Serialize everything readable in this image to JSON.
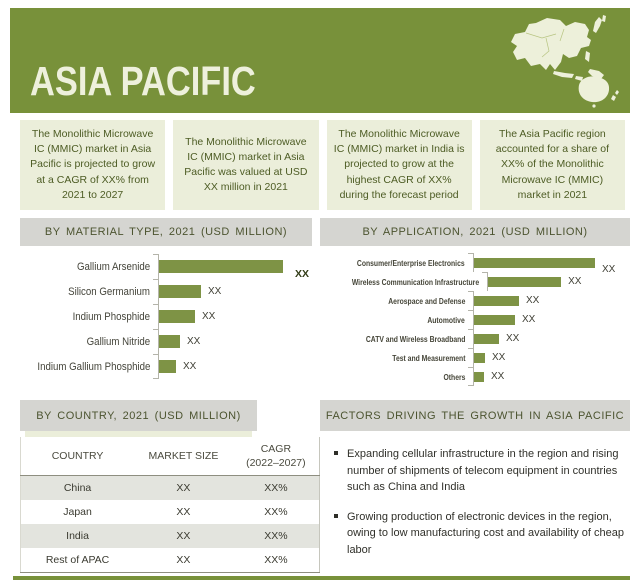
{
  "header": {
    "title": "ASIA PACIFIC"
  },
  "info_boxes": [
    {
      "text": "The Monolithic Microwave IC (MMIC) market in Asia Pacific is projected to grow at a CAGR of XX% from 2021 to 2027"
    },
    {
      "text": "The Monolithic Microwave IC (MMIC) market in Asia Pacific was valued at USD XX million in 2021"
    },
    {
      "text": "The Monolithic Microwave IC (MMIC) market in India is projected to grow at the highest CAGR of XX% during the forecast period"
    },
    {
      "text": "The Asia Pacific region accounted for a share of XX% of the Monolithic Microwave IC (MMIC) market in 2021"
    }
  ],
  "material_chart": {
    "title": "BY MATERIAL TYPE, 2021 (USD MILLION)",
    "categories": [
      "Gallium Arsenide",
      "Silicon Germanium",
      "Indium Phosphide",
      "Gallium Nitride",
      "Indium Gallium Phosphide"
    ],
    "value_labels": [
      "XX",
      "XX",
      "XX",
      "XX",
      "XX"
    ],
    "relative_lengths": [
      1.0,
      0.34,
      0.29,
      0.17,
      0.14
    ],
    "first_value_bold": true
  },
  "application_chart": {
    "title": "BY APPLICATION, 2021 (USD MILLION)",
    "categories": [
      "Consumer/Enterprise Electronics",
      "Wireless Communication Infrastructure",
      "Aerospace and Defense",
      "Automotive",
      "CATV and Wireless Broadband",
      "Test and Measurement",
      "Others"
    ],
    "value_labels": [
      "XX",
      "XX",
      "XX",
      "XX",
      "XX",
      "XX",
      "XX"
    ],
    "relative_lengths": [
      1.0,
      0.6,
      0.37,
      0.34,
      0.21,
      0.09,
      0.08
    ],
    "first_value_bold": false
  },
  "country_table": {
    "title": "BY COUNTRY, 2021 (USD MILLION)",
    "columns": [
      "COUNTRY",
      "MARKET SIZE",
      "CAGR\n(2022–2027)"
    ],
    "rows": [
      [
        "China",
        "XX",
        "XX%"
      ],
      [
        "Japan",
        "XX",
        "XX%"
      ],
      [
        "India",
        "XX",
        "XX%"
      ],
      [
        "Rest of APAC",
        "XX",
        "XX%"
      ]
    ]
  },
  "factors": {
    "title": "FACTORS DRIVING THE GROWTH IN ASIA PACIFIC",
    "bullets": [
      "Expanding cellular infrastructure in the region and rising number of shipments of telecom equipment in countries such as China and India",
      "Growing production of electronic devices in the region, owing to low manufacturing cost and availability of cheap labor"
    ]
  },
  "colors": {
    "olive_accent": "#78913a",
    "bar_green": "#7e9345",
    "cream_box": "#ebeeda",
    "gray_band": "#d5d5d1",
    "box_text_green": "#4d5c24",
    "table_shade": "#e3e4de"
  },
  "icons": {
    "map": "asia-pacific-map-silhouette"
  },
  "chart_data": [
    {
      "type": "bar",
      "orientation": "horizontal",
      "title": "BY MATERIAL TYPE, 2021 (USD MILLION)",
      "categories": [
        "Gallium Arsenide",
        "Silicon Germanium",
        "Indium Phosphide",
        "Gallium Nitride",
        "Indium Gallium Phosphide"
      ],
      "value_labels": [
        "XX",
        "XX",
        "XX",
        "XX",
        "XX"
      ],
      "relative_lengths": [
        1.0,
        0.34,
        0.29,
        0.17,
        0.14
      ],
      "xlabel": "",
      "ylabel": "",
      "grid": false,
      "legend": false,
      "note": "values masked as XX in source; lengths estimated from pixels"
    },
    {
      "type": "bar",
      "orientation": "horizontal",
      "title": "BY APPLICATION, 2021 (USD MILLION)",
      "categories": [
        "Consumer/Enterprise Electronics",
        "Wireless Communication Infrastructure",
        "Aerospace and Defense",
        "Automotive",
        "CATV and Wireless Broadband",
        "Test and Measurement",
        "Others"
      ],
      "value_labels": [
        "XX",
        "XX",
        "XX",
        "XX",
        "XX",
        "XX",
        "XX"
      ],
      "relative_lengths": [
        1.0,
        0.6,
        0.37,
        0.34,
        0.21,
        0.09,
        0.08
      ],
      "xlabel": "",
      "ylabel": "",
      "grid": false,
      "legend": false,
      "note": "values masked as XX in source; lengths estimated from pixels"
    },
    {
      "type": "table",
      "title": "BY COUNTRY, 2021 (USD MILLION)",
      "columns": [
        "COUNTRY",
        "MARKET SIZE",
        "CAGR (2022–2027)"
      ],
      "rows": [
        [
          "China",
          "XX",
          "XX%"
        ],
        [
          "Japan",
          "XX",
          "XX%"
        ],
        [
          "India",
          "XX",
          "XX%"
        ],
        [
          "Rest of APAC",
          "XX",
          "XX%"
        ]
      ]
    }
  ]
}
